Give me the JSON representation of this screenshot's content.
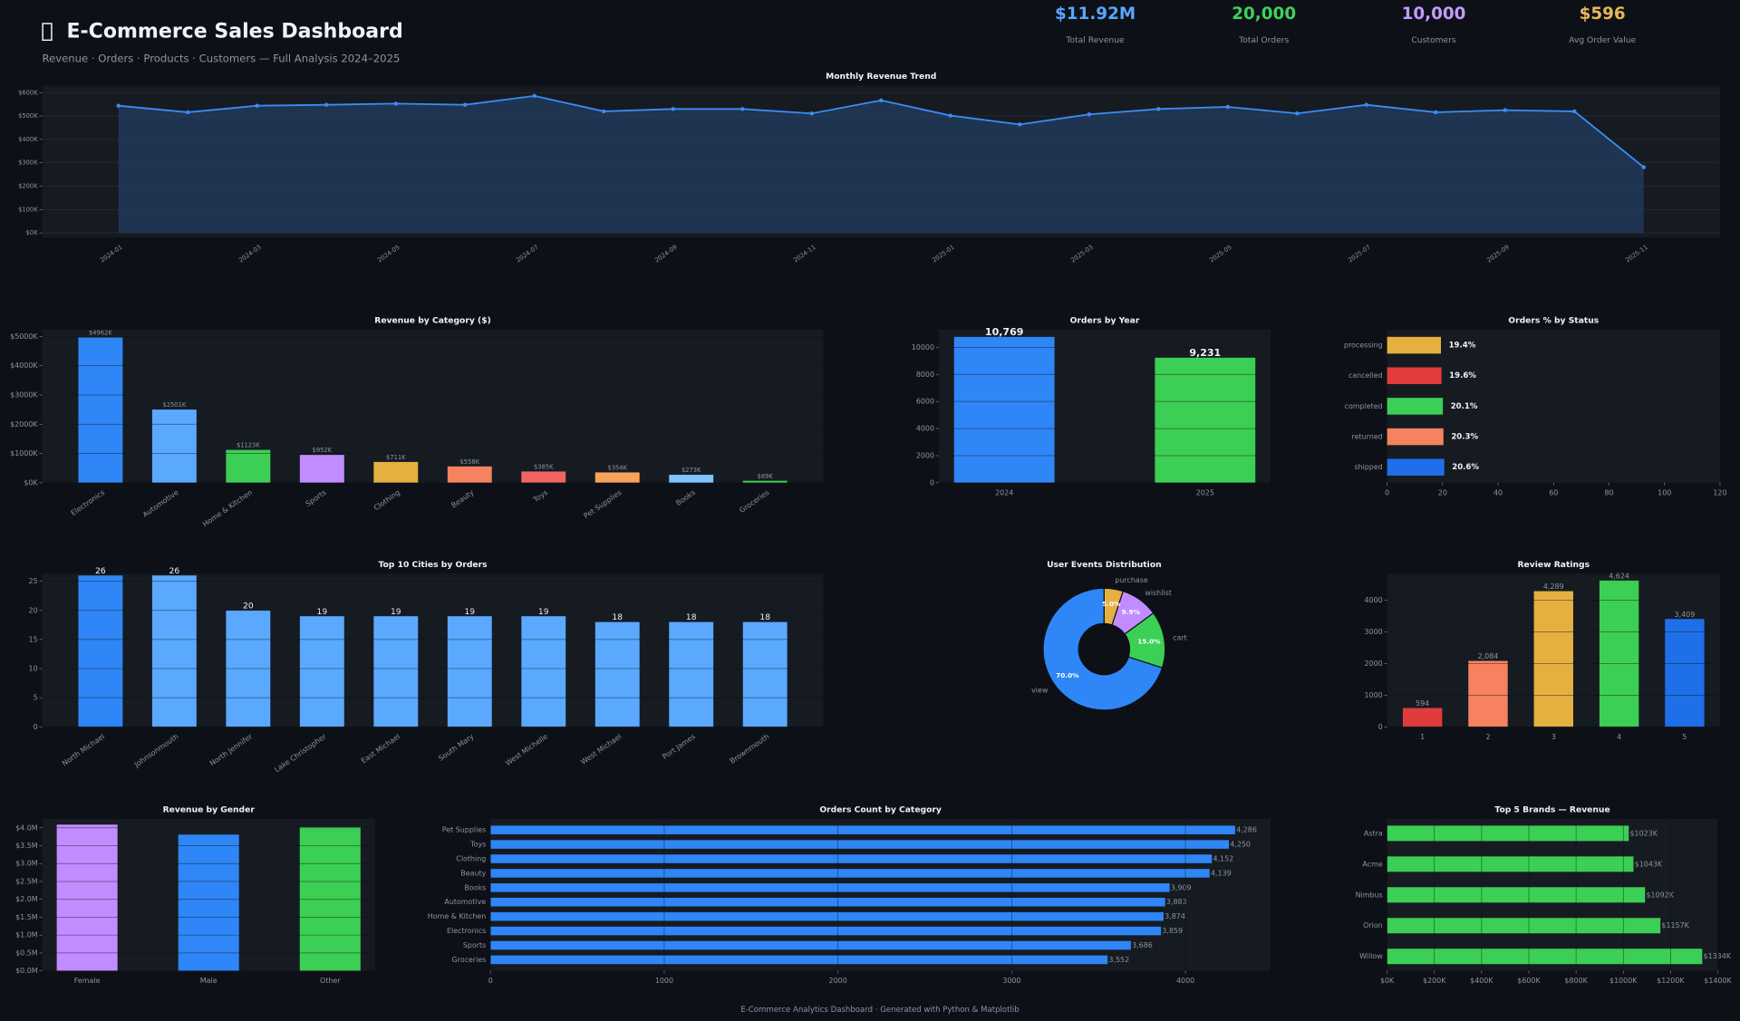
{
  "header": {
    "title": "E-Commerce Sales Dashboard",
    "subtitle": "Revenue · Orders · Products · Customers — Full Analysis 2024–2025"
  },
  "kpis": [
    {
      "value": "$11.92M",
      "label": "Total Revenue",
      "color": "#58a6ff"
    },
    {
      "value": "20,000",
      "label": "Total Orders",
      "color": "#3fd05a"
    },
    {
      "value": "10,000",
      "label": "Customers",
      "color": "#c39bff"
    },
    {
      "value": "$596",
      "label": "Avg Order Value",
      "color": "#e8b65a"
    }
  ],
  "footer": "E-Commerce Analytics Dashboard · Generated with Python & Matplotlib",
  "chart_data": [
    {
      "type": "line",
      "title": "Monthly Revenue Trend",
      "categories": [
        "2024-01",
        null,
        "2024-03",
        null,
        "2024-05",
        null,
        "2024-07",
        null,
        "2024-09",
        null,
        "2024-11",
        null,
        "2025-01",
        null,
        "2025-03",
        null,
        "2025-05",
        null,
        "2025-07",
        null,
        "2025-09",
        null,
        "2025-11"
      ],
      "values": [
        544000,
        516000,
        544000,
        548000,
        553000,
        548000,
        586000,
        520000,
        530000,
        530000,
        511000,
        567000,
        502000,
        464000,
        507000,
        530000,
        539000,
        511000,
        548000,
        516000,
        525000,
        520000,
        281000
      ],
      "color": "#3b8cf5",
      "area": true,
      "markers": true,
      "ylim": [
        -20000,
        630000
      ],
      "yticks": [
        {
          "value": 0,
          "label": "$0K"
        },
        {
          "value": 100000,
          "label": "$100K"
        },
        {
          "value": 200000,
          "label": "$200K"
        },
        {
          "value": 300000,
          "label": "$300K"
        },
        {
          "value": 400000,
          "label": "$400K"
        },
        {
          "value": 500000,
          "label": "$500K"
        },
        {
          "value": 600000,
          "label": "$600K"
        }
      ],
      "grid": true
    },
    {
      "type": "bar",
      "title": "Revenue by Category ($)",
      "categories": [
        "Electronics",
        "Automotive",
        "Home & Kitchen",
        "Sports",
        "Clothing",
        "Beauty",
        "Toys",
        "Pet Supplies",
        "Books",
        "Groceries"
      ],
      "values": [
        4962000,
        2501000,
        1123000,
        952000,
        711000,
        558000,
        385000,
        354000,
        273000,
        69000
      ],
      "value_labels": [
        "$4962K",
        "$2501K",
        "$1123K",
        "$952K",
        "$711K",
        "$558K",
        "$385K",
        "$354K",
        "$273K",
        "$69K"
      ],
      "colors": [
        "#2f86f6",
        "#5aa9ff",
        "#3ccf55",
        "#c08cff",
        "#e6b040",
        "#f6825f",
        "#f06464",
        "#f9a35a",
        "#7cc4ff",
        "#3ccf55"
      ],
      "ylim": [
        0,
        5230000
      ],
      "yticks": [
        {
          "value": 0,
          "label": "$0K"
        },
        {
          "value": 1000000,
          "label": "$1000K"
        },
        {
          "value": 2000000,
          "label": "$2000K"
        },
        {
          "value": 3000000,
          "label": "$3000K"
        },
        {
          "value": 4000000,
          "label": "$4000K"
        },
        {
          "value": 5000000,
          "label": "$5000K"
        }
      ],
      "grid": true
    },
    {
      "type": "bar",
      "title": "Orders by Year",
      "categories": [
        "2024",
        "2025"
      ],
      "values": [
        10769,
        9231
      ],
      "value_labels": [
        "10,769",
        "9,231"
      ],
      "colors": [
        "#2f86f6",
        "#3ccf55"
      ],
      "ylim": [
        0,
        11300
      ],
      "yticks": [
        0,
        2000,
        4000,
        6000,
        8000,
        10000
      ],
      "grid": true
    },
    {
      "type": "bar",
      "orientation": "horizontal",
      "title": "Orders % by Status",
      "categories": [
        "processing",
        "cancelled",
        "completed",
        "returned",
        "shipped"
      ],
      "values": [
        19.4,
        19.6,
        20.1,
        20.3,
        20.6
      ],
      "value_labels": [
        "19.4%",
        "19.6%",
        "20.1%",
        "20.3%",
        "20.6%"
      ],
      "colors": [
        "#e6b040",
        "#e03c3c",
        "#3ccf55",
        "#f6825f",
        "#1f6fe8"
      ],
      "xlim": [
        0,
        120
      ],
      "xticks": [
        0,
        20,
        40,
        60,
        80,
        100,
        120
      ],
      "grid": false
    },
    {
      "type": "bar",
      "title": "Top 10 Cities by Orders",
      "categories": [
        "North Michael",
        "Johnsonmouth",
        "North Jennifer",
        "Lake Christopher",
        "East Michael",
        "South Mary",
        "West Michelle",
        "West Michael",
        "Port James",
        "Brownmouth"
      ],
      "values": [
        26,
        26,
        20,
        19,
        19,
        19,
        19,
        18,
        18,
        18
      ],
      "data_labels": true,
      "colors": [
        "#2f86f6",
        "#5aa9ff",
        "#5aa9ff",
        "#5aa9ff",
        "#5aa9ff",
        "#5aa9ff",
        "#5aa9ff",
        "#5aa9ff",
        "#5aa9ff",
        "#5aa9ff"
      ],
      "ylim": [
        0,
        26.3
      ],
      "yticks": [
        0,
        5,
        10,
        15,
        20,
        25
      ],
      "grid": true
    },
    {
      "type": "pie",
      "title": "User Events Distribution",
      "categories": [
        "view",
        "cart",
        "wishlist",
        "purchase"
      ],
      "values": [
        70.0,
        15.0,
        9.9,
        5.0
      ],
      "value_labels": [
        "70.0%",
        "15.0%",
        "9.9%",
        "5.0%"
      ],
      "colors": [
        "#2f86f6",
        "#3ccf55",
        "#c08cff",
        "#e6b040"
      ],
      "donut": true,
      "start_angle": 90
    },
    {
      "type": "bar",
      "title": "Review Ratings",
      "categories": [
        "1",
        "2",
        "3",
        "4",
        "5"
      ],
      "values": [
        594,
        2084,
        4289,
        4624,
        3409
      ],
      "value_labels": [
        "594",
        "2,084",
        "4,289",
        "4,624",
        "3,409"
      ],
      "colors": [
        "#e03c3c",
        "#f6825f",
        "#e6b040",
        "#3ccf55",
        "#1f6fe8"
      ],
      "ylim": [
        0,
        4840
      ],
      "yticks": [
        0,
        1000,
        2000,
        3000,
        4000
      ],
      "grid": true
    },
    {
      "type": "bar",
      "title": "Revenue by Gender",
      "categories": [
        "Female",
        "Male",
        "Other"
      ],
      "values": [
        4090000,
        3810000,
        4020000
      ],
      "colors": [
        "#c08cff",
        "#2f86f6",
        "#3ccf55"
      ],
      "ylim": [
        0,
        4250000
      ],
      "yticks": [
        {
          "value": 0,
          "label": "$0.0M"
        },
        {
          "value": 500000,
          "label": "$0.5M"
        },
        {
          "value": 1000000,
          "label": "$1.0M"
        },
        {
          "value": 1500000,
          "label": "$1.5M"
        },
        {
          "value": 2000000,
          "label": "$2.0M"
        },
        {
          "value": 2500000,
          "label": "$2.5M"
        },
        {
          "value": 3000000,
          "label": "$3.0M"
        },
        {
          "value": 3500000,
          "label": "$3.5M"
        },
        {
          "value": 4000000,
          "label": "$4.0M"
        }
      ],
      "grid": true
    },
    {
      "type": "bar",
      "orientation": "horizontal",
      "title": "Orders Count by Category",
      "categories": [
        "Pet Supplies",
        "Toys",
        "Clothing",
        "Beauty",
        "Books",
        "Automotive",
        "Home & Kitchen",
        "Electronics",
        "Sports",
        "Groceries"
      ],
      "values": [
        4286,
        4250,
        4152,
        4139,
        3909,
        3883,
        3874,
        3859,
        3686,
        3552
      ],
      "value_labels": [
        "4,286",
        "4,250",
        "4,152",
        "4,139",
        "3,909",
        "3,883",
        "3,874",
        "3,859",
        "3,686",
        "3,552"
      ],
      "colors": [
        "#2f86f6",
        "#2f86f6",
        "#2f86f6",
        "#2f86f6",
        "#2f86f6",
        "#2f86f6",
        "#2f86f6",
        "#2f86f6",
        "#2f86f6",
        "#2f86f6"
      ],
      "xlim": [
        0,
        4490
      ],
      "xticks": [
        0,
        1000,
        2000,
        3000,
        4000
      ],
      "grid": true
    },
    {
      "type": "bar",
      "orientation": "horizontal",
      "title": "Top 5 Brands — Revenue",
      "categories": [
        "Astra",
        "Acme",
        "Nimbus",
        "Orion",
        "Willow"
      ],
      "values": [
        1023000,
        1043000,
        1092000,
        1157000,
        1334000
      ],
      "value_labels": [
        "$1023K",
        "$1043K",
        "$1092K",
        "$1157K",
        "$1334K"
      ],
      "colors": [
        "#3ccf55",
        "#3ccf55",
        "#3ccf55",
        "#3ccf55",
        "#3ccf55"
      ],
      "xlim": [
        0,
        1400000
      ],
      "xticks": [
        {
          "value": 0,
          "label": "$0K"
        },
        {
          "value": 200000,
          "label": "$200K"
        },
        {
          "value": 400000,
          "label": "$400K"
        },
        {
          "value": 600000,
          "label": "$600K"
        },
        {
          "value": 800000,
          "label": "$800K"
        },
        {
          "value": 1000000,
          "label": "$1000K"
        },
        {
          "value": 1200000,
          "label": "$1200K"
        },
        {
          "value": 1400000,
          "label": "$1400K"
        }
      ],
      "grid": true
    }
  ]
}
